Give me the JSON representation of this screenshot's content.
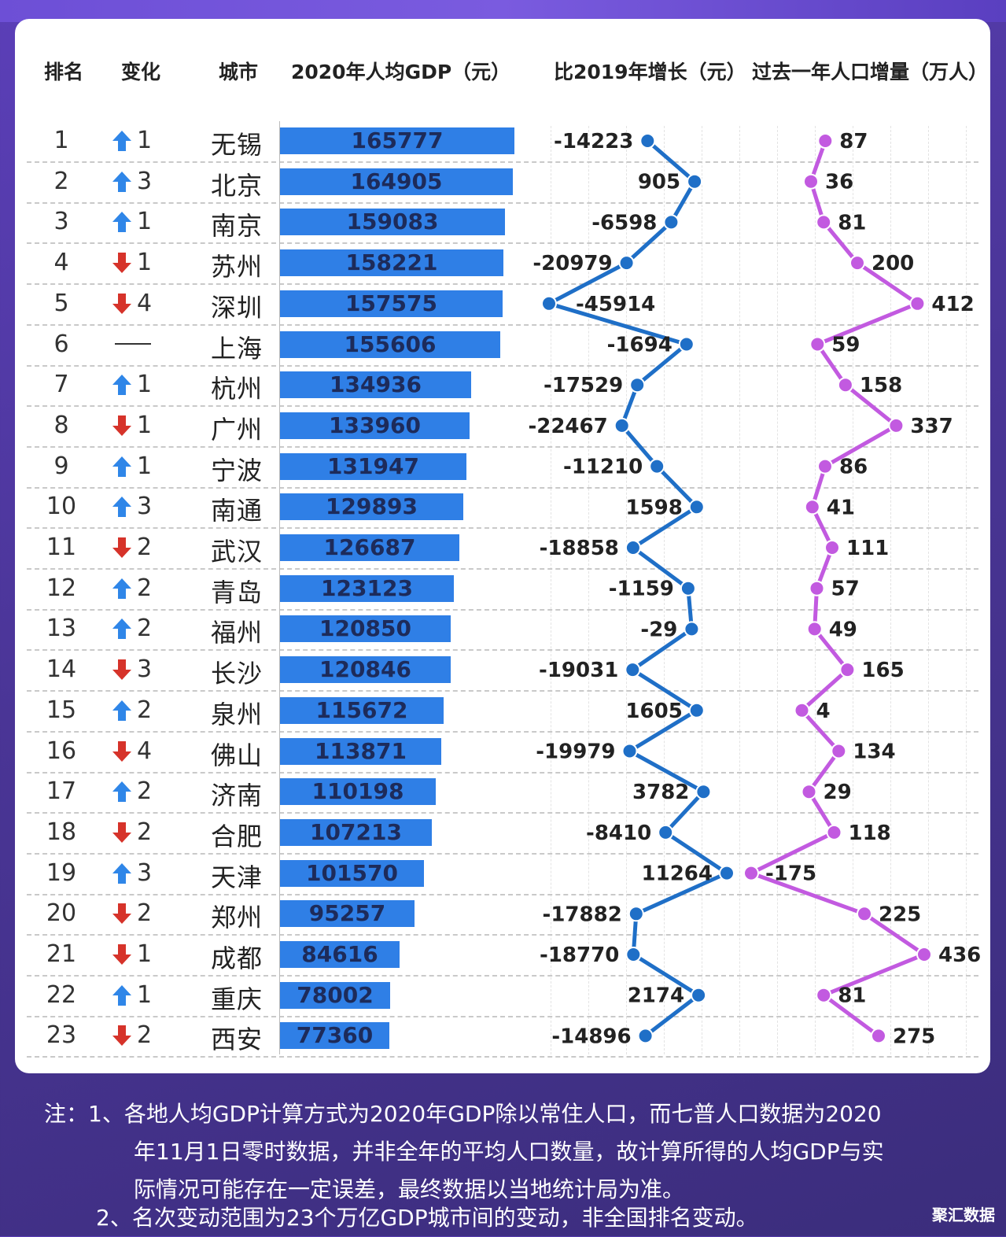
{
  "headers": {
    "rank": "排名",
    "change": "变化",
    "city": "城市",
    "gdp": "2020年人均GDP（元）",
    "growth": "比2019年增长（元）",
    "pop": "过去一年人口增量（万人）"
  },
  "colors": {
    "bar": "#2f7fe6",
    "line_growth": "#1f6fc7",
    "line_pop": "#c25ae0",
    "up": "#2f86e8",
    "down": "#d6332a"
  },
  "chart_data": {
    "type": "table",
    "columns": [
      "排名",
      "变化",
      "城市",
      "2020年人均GDP（元）",
      "比2019年增长（元）",
      "过去一年人口增量（万人）"
    ],
    "rows": [
      {
        "rank": "1",
        "dir": "up",
        "change": "1",
        "city": "无锡",
        "gdp": 165777,
        "growth": -14223,
        "pop": 87
      },
      {
        "rank": "2",
        "dir": "up",
        "change": "3",
        "city": "北京",
        "gdp": 164905,
        "growth": 905,
        "pop": 36
      },
      {
        "rank": "3",
        "dir": "up",
        "change": "1",
        "city": "南京",
        "gdp": 159083,
        "growth": -6598,
        "pop": 81
      },
      {
        "rank": "4",
        "dir": "down",
        "change": "1",
        "city": "苏州",
        "gdp": 158221,
        "growth": -20979,
        "pop": 200
      },
      {
        "rank": "5",
        "dir": "down",
        "change": "4",
        "city": "深圳",
        "gdp": 157575,
        "growth": -45914,
        "pop": 412
      },
      {
        "rank": "6",
        "dir": "none",
        "change": "",
        "city": "上海",
        "gdp": 155606,
        "growth": -1694,
        "pop": 59
      },
      {
        "rank": "7",
        "dir": "up",
        "change": "1",
        "city": "杭州",
        "gdp": 134936,
        "growth": -17529,
        "pop": 158
      },
      {
        "rank": "8",
        "dir": "down",
        "change": "1",
        "city": "广州",
        "gdp": 133960,
        "growth": -22467,
        "pop": 337
      },
      {
        "rank": "9",
        "dir": "up",
        "change": "1",
        "city": "宁波",
        "gdp": 131947,
        "growth": -11210,
        "pop": 86
      },
      {
        "rank": "10",
        "dir": "up",
        "change": "3",
        "city": "南通",
        "gdp": 129893,
        "growth": 1598,
        "pop": 41
      },
      {
        "rank": "11",
        "dir": "down",
        "change": "2",
        "city": "武汉",
        "gdp": 126687,
        "growth": -18858,
        "pop": 111
      },
      {
        "rank": "12",
        "dir": "up",
        "change": "2",
        "city": "青岛",
        "gdp": 123123,
        "growth": -1159,
        "pop": 57
      },
      {
        "rank": "13",
        "dir": "up",
        "change": "2",
        "city": "福州",
        "gdp": 120850,
        "growth": -29,
        "pop": 49
      },
      {
        "rank": "14",
        "dir": "down",
        "change": "3",
        "city": "长沙",
        "gdp": 120846,
        "growth": -19031,
        "pop": 165
      },
      {
        "rank": "15",
        "dir": "up",
        "change": "2",
        "city": "泉州",
        "gdp": 115672,
        "growth": 1605,
        "pop": 4
      },
      {
        "rank": "16",
        "dir": "down",
        "change": "4",
        "city": "佛山",
        "gdp": 113871,
        "growth": -19979,
        "pop": 134
      },
      {
        "rank": "17",
        "dir": "up",
        "change": "2",
        "city": "济南",
        "gdp": 110198,
        "growth": 3782,
        "pop": 29
      },
      {
        "rank": "18",
        "dir": "down",
        "change": "2",
        "city": "合肥",
        "gdp": 107213,
        "growth": -8410,
        "pop": 118
      },
      {
        "rank": "19",
        "dir": "up",
        "change": "3",
        "city": "天津",
        "gdp": 101570,
        "growth": 11264,
        "pop": -175
      },
      {
        "rank": "20",
        "dir": "down",
        "change": "2",
        "city": "郑州",
        "gdp": 95257,
        "growth": -17882,
        "pop": 225
      },
      {
        "rank": "21",
        "dir": "down",
        "change": "1",
        "city": "成都",
        "gdp": 84616,
        "growth": -18770,
        "pop": 436
      },
      {
        "rank": "22",
        "dir": "up",
        "change": "1",
        "city": "重庆",
        "gdp": 78002,
        "growth": 2174,
        "pop": 81
      },
      {
        "rank": "23",
        "dir": "down",
        "change": "2",
        "city": "西安",
        "gdp": 77360,
        "growth": -14896,
        "pop": 275
      }
    ]
  },
  "notes": {
    "line1": "注：1、各地人均GDP计算方式为2020年GDP除以常住人口，而七普人口数据为2020",
    "line2": "年11月1日零时数据，并非全年的平均人口数量，故计算所得的人均GDP与实",
    "line3": "际情况可能存在一定误差，最终数据以当地统计局为准。",
    "line4": "2、名次变动范围为23个万亿GDP城市间的变动，非全国排名变动。"
  },
  "brand": "聚汇数据"
}
